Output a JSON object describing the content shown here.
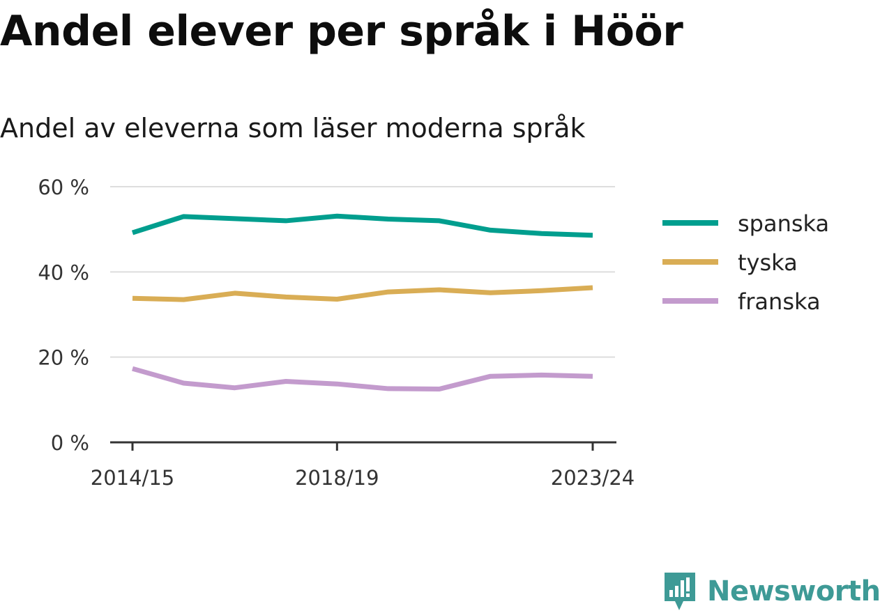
{
  "chart_data": {
    "type": "line",
    "title": "Andel elever per språk i Höör",
    "subtitle": "Andel av eleverna som läser moderna språk",
    "x": [
      "2014/15",
      "2015/16",
      "2016/17",
      "2017/18",
      "2018/19",
      "2019/20",
      "2020/21",
      "2021/22",
      "2022/23",
      "2023/24"
    ],
    "x_tick_labels": [
      "2014/15",
      "2018/19",
      "2023/24"
    ],
    "ylim": [
      0,
      60
    ],
    "y_ticks": [
      0,
      20,
      40,
      60
    ],
    "y_tick_labels": [
      "0 %",
      "20 %",
      "40 %",
      "60 %"
    ],
    "grid": true,
    "legend_position": "right",
    "series": [
      {
        "name": "spanska",
        "color": "#009e8e",
        "values": [
          49.2,
          53.0,
          52.5,
          52.0,
          53.1,
          52.4,
          52.0,
          49.8,
          49.0,
          48.6
        ]
      },
      {
        "name": "tyska",
        "color": "#d9ad55",
        "values": [
          33.8,
          33.5,
          35.0,
          34.1,
          33.6,
          35.3,
          35.8,
          35.1,
          35.6,
          36.3
        ]
      },
      {
        "name": "franska",
        "color": "#c39bcd",
        "values": [
          17.3,
          13.9,
          12.8,
          14.3,
          13.7,
          12.6,
          12.5,
          15.5,
          15.8,
          15.5
        ]
      }
    ]
  },
  "branding": {
    "name": "Newsworthy",
    "logo_icon": "newsworthy-bar-chart-icon",
    "color": "#3e9a96"
  }
}
